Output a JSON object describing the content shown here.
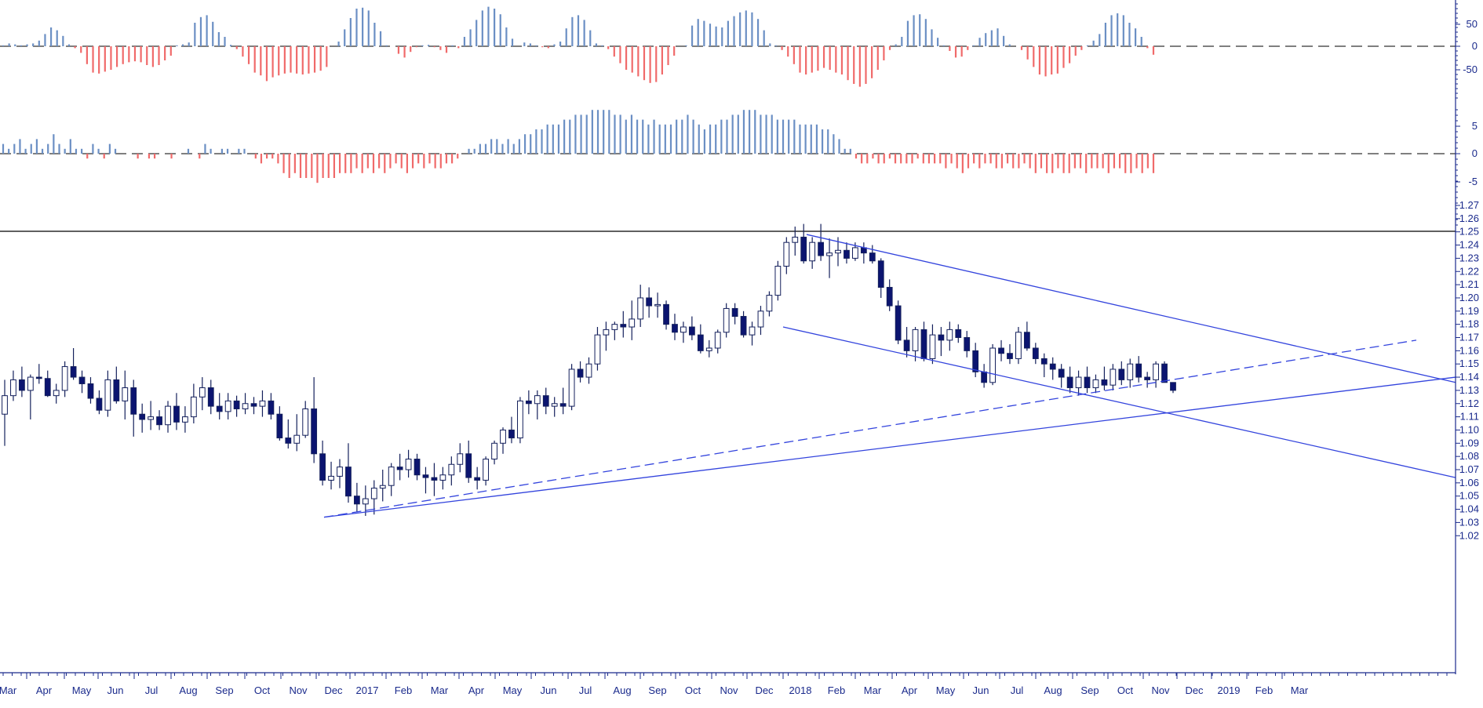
{
  "colors": {
    "positive_bar": "#6b8fc4",
    "negative_bar": "#f06a6a",
    "candle_down": "#0b1470",
    "candle_up_fill": "#ffffff",
    "candle_line": "#14205c",
    "trendline": "#3344dd",
    "axis": "#1a2a8c",
    "divider": "#000000"
  },
  "chart_data": [
    {
      "type": "bar",
      "panel": "upper-oscillator",
      "yticks": [
        "50",
        "0",
        "-50"
      ],
      "ylim": [
        -70,
        80
      ],
      "zero_line": "dashed",
      "values": [
        2,
        6,
        4,
        2,
        4,
        6,
        12,
        26,
        40,
        34,
        22,
        4,
        -4,
        -14,
        -38,
        -56,
        -58,
        -54,
        -50,
        -44,
        -38,
        -34,
        -32,
        -34,
        -40,
        -44,
        -40,
        -30,
        -20,
        2,
        4,
        8,
        50,
        62,
        66,
        52,
        30,
        20,
        3,
        -6,
        -22,
        -38,
        -56,
        -62,
        -74,
        -66,
        -62,
        -58,
        -56,
        -58,
        -60,
        -58,
        -56,
        -52,
        -44,
        0,
        10,
        36,
        60,
        80,
        82,
        76,
        50,
        32,
        2,
        0,
        -16,
        -24,
        -12,
        -2,
        2,
        3,
        -2,
        -8,
        -14,
        2,
        -4,
        20,
        36,
        56,
        76,
        84,
        80,
        68,
        40,
        16,
        0,
        8,
        6,
        2,
        -2,
        -4,
        4,
        10,
        38,
        62,
        66,
        56,
        34,
        6,
        2,
        -6,
        -22,
        -36,
        -50,
        -56,
        -64,
        -72,
        -78,
        -76,
        -60,
        -40,
        -20,
        0,
        2,
        44,
        58,
        54,
        48,
        42,
        40,
        54,
        64,
        72,
        76,
        72,
        58,
        34,
        6,
        2,
        -8,
        -22,
        -38,
        -56,
        -60,
        -56,
        -52,
        -46,
        -50,
        -56,
        -60,
        -72,
        -80,
        -86,
        -80,
        -68,
        -50,
        -30,
        -8,
        4,
        20,
        54,
        66,
        68,
        58,
        36,
        18,
        2,
        -10,
        -24,
        -22,
        -8,
        2,
        18,
        28,
        34,
        38,
        22,
        4,
        0,
        -8,
        -28,
        -44,
        -60,
        -64,
        -60,
        -58,
        -46,
        -36,
        -20,
        -8,
        2,
        12,
        26,
        50,
        66,
        70,
        66,
        50,
        38,
        20,
        -4,
        -18
      ]
    },
    {
      "type": "bar",
      "panel": "lower-oscillator",
      "yticks": [
        "5",
        "0",
        "-5"
      ],
      "ylim": [
        -7,
        10
      ],
      "zero_line": "dashed",
      "values": [
        2,
        1,
        2,
        3,
        1,
        2,
        3,
        1,
        2,
        4,
        2,
        1,
        3,
        1,
        1,
        -1,
        2,
        1,
        -1,
        2,
        1,
        0,
        0,
        0,
        -1,
        0,
        -1,
        -1,
        0,
        0,
        -1,
        0,
        0,
        1,
        0,
        -1,
        2,
        1,
        0,
        1,
        1,
        0,
        1,
        1,
        0,
        -1,
        -2,
        -1,
        -1,
        -2,
        -4,
        -5,
        -4,
        -5,
        -5,
        -5,
        -6,
        -5,
        -5,
        -5,
        -4,
        -4,
        -4,
        -3,
        -4,
        -3,
        -4,
        -3,
        -4,
        -3,
        -2,
        -3,
        -4,
        -3,
        -2,
        -3,
        -2,
        -3,
        -3,
        -2,
        -2,
        -1,
        0,
        1,
        1,
        2,
        2,
        3,
        3,
        2,
        3,
        2,
        3,
        4,
        4,
        5,
        5,
        6,
        6,
        6,
        7,
        7,
        8,
        8,
        8,
        9,
        9,
        9,
        9,
        8,
        8,
        7,
        8,
        7,
        7,
        6,
        7,
        6,
        6,
        6,
        7,
        7,
        8,
        7,
        6,
        5,
        6,
        6,
        7,
        7,
        8,
        8,
        9,
        9,
        9,
        8,
        8,
        8,
        7,
        7,
        7,
        7,
        6,
        6,
        6,
        6,
        5,
        5,
        4,
        3,
        1,
        1,
        -1,
        -2,
        -2,
        -1,
        -2,
        -2,
        -1,
        -2,
        -2,
        -2,
        -2,
        -1,
        -2,
        -2,
        -2,
        -2,
        -3,
        -2,
        -3,
        -4,
        -3,
        -2,
        -3,
        -2,
        -2,
        -3,
        -3,
        -2,
        -3,
        -3,
        -2,
        -3,
        -4,
        -3,
        -4,
        -4,
        -3,
        -4,
        -4,
        -3,
        -3,
        -4,
        -3,
        -3,
        -3,
        -4,
        -3,
        -3,
        -4,
        -4,
        -3,
        -4,
        -3,
        -4
      ]
    },
    {
      "type": "candlestick",
      "panel": "price",
      "interval": "weekly",
      "ylim": [
        1.01,
        1.27
      ],
      "yticks": [
        "1.27",
        "1.26",
        "1.25",
        "1.24",
        "1.23",
        "1.22",
        "1.21",
        "1.20",
        "1.19",
        "1.18",
        "1.17",
        "1.16",
        "1.15",
        "1.14",
        "1.13",
        "1.12",
        "1.11",
        "1.10",
        "1.09",
        "1.08",
        "1.07",
        "1.06",
        "1.05",
        "1.04",
        "1.03",
        "1.02"
      ],
      "x_start_label": "Mar",
      "xticks": [
        "Mar",
        "Apr",
        "May",
        "Jun",
        "Jul",
        "Aug",
        "Sep",
        "Oct",
        "Nov",
        "Dec",
        "2017",
        "Feb",
        "Mar",
        "Apr",
        "May",
        "Jun",
        "Jul",
        "Aug",
        "Sep",
        "Oct",
        "Nov",
        "Dec",
        "2018",
        "Feb",
        "Mar",
        "Apr",
        "May",
        "Jun",
        "Jul",
        "Aug",
        "Sep",
        "Oct",
        "Nov",
        "Dec",
        "2019",
        "Feb",
        "Mar"
      ],
      "ohlc": [
        [
          1.112,
          1.138,
          1.088,
          1.126
        ],
        [
          1.126,
          1.145,
          1.122,
          1.138
        ],
        [
          1.138,
          1.148,
          1.125,
          1.13
        ],
        [
          1.13,
          1.142,
          1.108,
          1.14
        ],
        [
          1.14,
          1.15,
          1.135,
          1.139
        ],
        [
          1.139,
          1.145,
          1.125,
          1.126
        ],
        [
          1.126,
          1.135,
          1.12,
          1.13
        ],
        [
          1.13,
          1.152,
          1.125,
          1.148
        ],
        [
          1.148,
          1.162,
          1.138,
          1.14
        ],
        [
          1.14,
          1.145,
          1.128,
          1.135
        ],
        [
          1.135,
          1.14,
          1.12,
          1.124
        ],
        [
          1.124,
          1.13,
          1.112,
          1.115
        ],
        [
          1.115,
          1.145,
          1.11,
          1.138
        ],
        [
          1.138,
          1.148,
          1.12,
          1.122
        ],
        [
          1.122,
          1.145,
          1.108,
          1.132
        ],
        [
          1.132,
          1.138,
          1.095,
          1.112
        ],
        [
          1.112,
          1.12,
          1.098,
          1.108
        ],
        [
          1.108,
          1.122,
          1.1,
          1.11
        ],
        [
          1.11,
          1.115,
          1.1,
          1.104
        ],
        [
          1.104,
          1.122,
          1.098,
          1.118
        ],
        [
          1.118,
          1.128,
          1.1,
          1.106
        ],
        [
          1.106,
          1.118,
          1.098,
          1.11
        ],
        [
          1.11,
          1.135,
          1.105,
          1.125
        ],
        [
          1.125,
          1.14,
          1.115,
          1.132
        ],
        [
          1.132,
          1.138,
          1.112,
          1.118
        ],
        [
          1.118,
          1.128,
          1.108,
          1.114
        ],
        [
          1.114,
          1.128,
          1.108,
          1.122
        ],
        [
          1.122,
          1.126,
          1.11,
          1.116
        ],
        [
          1.116,
          1.128,
          1.112,
          1.12
        ],
        [
          1.12,
          1.125,
          1.112,
          1.118
        ],
        [
          1.118,
          1.13,
          1.11,
          1.122
        ],
        [
          1.122,
          1.128,
          1.108,
          1.112
        ],
        [
          1.112,
          1.118,
          1.092,
          1.094
        ],
        [
          1.094,
          1.108,
          1.086,
          1.09
        ],
        [
          1.09,
          1.112,
          1.084,
          1.096
        ],
        [
          1.096,
          1.122,
          1.094,
          1.116
        ],
        [
          1.116,
          1.14,
          1.075,
          1.082
        ],
        [
          1.082,
          1.092,
          1.058,
          1.062
        ],
        [
          1.062,
          1.076,
          1.055,
          1.065
        ],
        [
          1.065,
          1.078,
          1.056,
          1.072
        ],
        [
          1.072,
          1.09,
          1.045,
          1.05
        ],
        [
          1.05,
          1.06,
          1.038,
          1.044
        ],
        [
          1.044,
          1.058,
          1.035,
          1.048
        ],
        [
          1.048,
          1.062,
          1.036,
          1.056
        ],
        [
          1.056,
          1.07,
          1.046,
          1.058
        ],
        [
          1.058,
          1.075,
          1.05,
          1.072
        ],
        [
          1.072,
          1.082,
          1.062,
          1.07
        ],
        [
          1.07,
          1.085,
          1.064,
          1.078
        ],
        [
          1.078,
          1.082,
          1.062,
          1.066
        ],
        [
          1.066,
          1.072,
          1.052,
          1.064
        ],
        [
          1.064,
          1.075,
          1.05,
          1.062
        ],
        [
          1.062,
          1.072,
          1.055,
          1.066
        ],
        [
          1.066,
          1.08,
          1.058,
          1.074
        ],
        [
          1.074,
          1.09,
          1.068,
          1.082
        ],
        [
          1.082,
          1.092,
          1.06,
          1.064
        ],
        [
          1.064,
          1.072,
          1.055,
          1.062
        ],
        [
          1.062,
          1.08,
          1.058,
          1.078
        ],
        [
          1.078,
          1.092,
          1.074,
          1.09
        ],
        [
          1.09,
          1.102,
          1.082,
          1.1
        ],
        [
          1.1,
          1.11,
          1.09,
          1.094
        ],
        [
          1.094,
          1.125,
          1.09,
          1.122
        ],
        [
          1.122,
          1.13,
          1.112,
          1.12
        ],
        [
          1.12,
          1.13,
          1.108,
          1.126
        ],
        [
          1.126,
          1.132,
          1.112,
          1.118
        ],
        [
          1.118,
          1.125,
          1.11,
          1.12
        ],
        [
          1.12,
          1.132,
          1.112,
          1.118
        ],
        [
          1.118,
          1.15,
          1.115,
          1.146
        ],
        [
          1.146,
          1.152,
          1.136,
          1.14
        ],
        [
          1.14,
          1.155,
          1.135,
          1.15
        ],
        [
          1.15,
          1.178,
          1.145,
          1.172
        ],
        [
          1.172,
          1.182,
          1.16,
          1.176
        ],
        [
          1.176,
          1.182,
          1.168,
          1.18
        ],
        [
          1.18,
          1.19,
          1.17,
          1.178
        ],
        [
          1.178,
          1.198,
          1.168,
          1.184
        ],
        [
          1.184,
          1.21,
          1.178,
          1.2
        ],
        [
          1.2,
          1.208,
          1.185,
          1.194
        ],
        [
          1.194,
          1.204,
          1.185,
          1.195
        ],
        [
          1.195,
          1.198,
          1.176,
          1.18
        ],
        [
          1.18,
          1.188,
          1.168,
          1.174
        ],
        [
          1.174,
          1.182,
          1.166,
          1.178
        ],
        [
          1.178,
          1.186,
          1.168,
          1.172
        ],
        [
          1.172,
          1.18,
          1.158,
          1.16
        ],
        [
          1.16,
          1.168,
          1.155,
          1.162
        ],
        [
          1.162,
          1.176,
          1.158,
          1.174
        ],
        [
          1.174,
          1.196,
          1.17,
          1.192
        ],
        [
          1.192,
          1.196,
          1.18,
          1.186
        ],
        [
          1.186,
          1.19,
          1.17,
          1.172
        ],
        [
          1.172,
          1.182,
          1.164,
          1.178
        ],
        [
          1.178,
          1.194,
          1.172,
          1.19
        ],
        [
          1.19,
          1.205,
          1.186,
          1.202
        ],
        [
          1.202,
          1.228,
          1.198,
          1.224
        ],
        [
          1.224,
          1.246,
          1.218,
          1.242
        ],
        [
          1.242,
          1.254,
          1.232,
          1.246
        ],
        [
          1.246,
          1.256,
          1.226,
          1.228
        ],
        [
          1.228,
          1.246,
          1.222,
          1.242
        ],
        [
          1.242,
          1.256,
          1.228,
          1.232
        ],
        [
          1.232,
          1.245,
          1.215,
          1.234
        ],
        [
          1.234,
          1.246,
          1.224,
          1.236
        ],
        [
          1.236,
          1.242,
          1.226,
          1.23
        ],
        [
          1.23,
          1.242,
          1.228,
          1.238
        ],
        [
          1.238,
          1.242,
          1.226,
          1.234
        ],
        [
          1.234,
          1.24,
          1.226,
          1.228
        ],
        [
          1.228,
          1.23,
          1.2,
          1.208
        ],
        [
          1.208,
          1.214,
          1.19,
          1.194
        ],
        [
          1.194,
          1.198,
          1.165,
          1.168
        ],
        [
          1.168,
          1.178,
          1.155,
          1.16
        ],
        [
          1.16,
          1.178,
          1.152,
          1.176
        ],
        [
          1.176,
          1.182,
          1.152,
          1.154
        ],
        [
          1.154,
          1.18,
          1.15,
          1.172
        ],
        [
          1.172,
          1.178,
          1.156,
          1.168
        ],
        [
          1.168,
          1.182,
          1.16,
          1.176
        ],
        [
          1.176,
          1.18,
          1.166,
          1.17
        ],
        [
          1.17,
          1.175,
          1.155,
          1.16
        ],
        [
          1.16,
          1.166,
          1.14,
          1.144
        ],
        [
          1.144,
          1.15,
          1.132,
          1.136
        ],
        [
          1.136,
          1.165,
          1.134,
          1.162
        ],
        [
          1.162,
          1.168,
          1.152,
          1.158
        ],
        [
          1.158,
          1.165,
          1.15,
          1.154
        ],
        [
          1.154,
          1.178,
          1.15,
          1.174
        ],
        [
          1.174,
          1.182,
          1.16,
          1.162
        ],
        [
          1.162,
          1.166,
          1.15,
          1.154
        ],
        [
          1.154,
          1.158,
          1.14,
          1.15
        ],
        [
          1.15,
          1.155,
          1.138,
          1.146
        ],
        [
          1.146,
          1.15,
          1.132,
          1.14
        ],
        [
          1.14,
          1.148,
          1.128,
          1.132
        ],
        [
          1.132,
          1.145,
          1.126,
          1.14
        ],
        [
          1.14,
          1.148,
          1.128,
          1.132
        ],
        [
          1.132,
          1.142,
          1.128,
          1.138
        ],
        [
          1.138,
          1.148,
          1.13,
          1.134
        ],
        [
          1.134,
          1.15,
          1.13,
          1.146
        ],
        [
          1.146,
          1.152,
          1.134,
          1.138
        ],
        [
          1.138,
          1.154,
          1.132,
          1.15
        ],
        [
          1.15,
          1.156,
          1.136,
          1.14
        ],
        [
          1.14,
          1.144,
          1.132,
          1.138
        ],
        [
          1.138,
          1.152,
          1.132,
          1.15
        ],
        [
          1.15,
          1.152,
          1.136,
          1.136
        ],
        [
          1.136,
          1.136,
          1.128,
          1.13
        ]
      ],
      "trendlines": [
        {
          "style": "solid",
          "points": [
            [
              1.034,
              0
            ],
            [
              1.14,
              1
            ]
          ]
        },
        {
          "style": "dashed",
          "points": [
            [
              1.034,
              0
            ],
            [
              1.168,
              1
            ]
          ]
        },
        {
          "style": "solid",
          "points": [
            [
              1.248,
              0
            ],
            [
              1.136,
              1
            ]
          ]
        },
        {
          "style": "solid",
          "points": [
            [
              1.178,
              0
            ],
            [
              1.064,
              1
            ]
          ]
        }
      ]
    }
  ]
}
